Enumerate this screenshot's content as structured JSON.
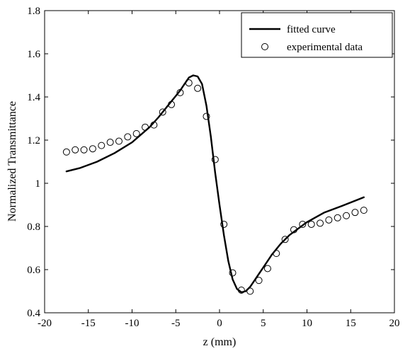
{
  "chart_data": {
    "type": "line",
    "xlabel": "z (mm)",
    "ylabel": "Normalized Transmittance",
    "xlim": [
      -20,
      20
    ],
    "ylim": [
      0.4,
      1.8
    ],
    "xticks": [
      -20,
      -15,
      -10,
      -5,
      0,
      5,
      10,
      15,
      20
    ],
    "yticks": [
      0.4,
      0.6,
      0.8,
      1,
      1.2,
      1.4,
      1.6,
      1.8
    ],
    "grid": false,
    "legend_position": "top-right",
    "series": [
      {
        "name": "fitted curve",
        "style": "line",
        "color": "#000000",
        "x": [
          -17.5,
          -16,
          -14,
          -12,
          -10,
          -8,
          -7,
          -6,
          -5,
          -4.5,
          -4,
          -3.5,
          -3,
          -2.5,
          -2,
          -1.5,
          -1,
          -0.5,
          0,
          0.5,
          1,
          1.5,
          2,
          2.5,
          3,
          3.5,
          4,
          4.5,
          5,
          6,
          7,
          8,
          10,
          12,
          14,
          16.5
        ],
        "y": [
          1.055,
          1.07,
          1.1,
          1.14,
          1.19,
          1.26,
          1.305,
          1.355,
          1.405,
          1.43,
          1.46,
          1.49,
          1.5,
          1.495,
          1.46,
          1.36,
          1.22,
          1.05,
          0.9,
          0.76,
          0.64,
          0.555,
          0.51,
          0.495,
          0.5,
          0.52,
          0.55,
          0.58,
          0.61,
          0.67,
          0.72,
          0.76,
          0.82,
          0.865,
          0.895,
          0.935
        ]
      },
      {
        "name": "experimental data",
        "style": "markers",
        "marker": "circle",
        "color": "#000000",
        "x": [
          -17.5,
          -16.5,
          -15.5,
          -14.5,
          -13.5,
          -12.5,
          -11.5,
          -10.5,
          -9.5,
          -8.5,
          -7.5,
          -6.5,
          -5.5,
          -4.5,
          -3.5,
          -2.5,
          -1.5,
          -0.5,
          0.5,
          1.5,
          2.5,
          3.5,
          4.5,
          5.5,
          6.5,
          7.5,
          8.5,
          9.5,
          10.5,
          11.5,
          12.5,
          13.5,
          14.5,
          15.5,
          16.5
        ],
        "y": [
          1.145,
          1.155,
          1.155,
          1.16,
          1.175,
          1.19,
          1.195,
          1.215,
          1.23,
          1.26,
          1.27,
          1.33,
          1.365,
          1.42,
          1.465,
          1.44,
          1.31,
          1.11,
          0.81,
          0.585,
          0.505,
          0.5,
          0.55,
          0.605,
          0.675,
          0.74,
          0.785,
          0.81,
          0.81,
          0.815,
          0.83,
          0.84,
          0.85,
          0.865,
          0.875
        ]
      }
    ]
  }
}
